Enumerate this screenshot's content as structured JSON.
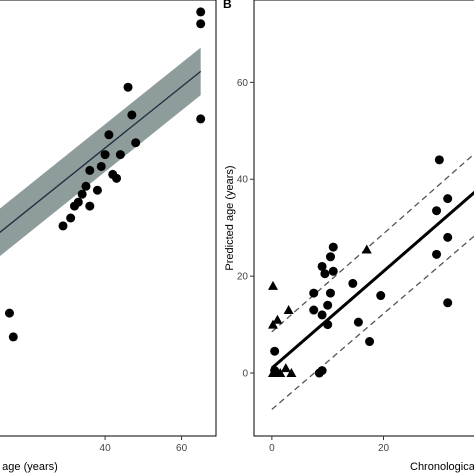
{
  "chart_data": [
    {
      "type": "scatter",
      "panel_label": "",
      "xlabel": "age (years)",
      "ylabel": "",
      "x_ticks": [
        40,
        60
      ],
      "y_ticks": [],
      "xlim": [
        12,
        69
      ],
      "ylim": [
        -10,
        100
      ],
      "grid": false,
      "series": [
        {
          "marker": "circle",
          "points": [
            [
              15,
              21
            ],
            [
              16,
              15
            ],
            [
              29,
              43
            ],
            [
              31,
              45
            ],
            [
              32,
              48
            ],
            [
              33,
              49
            ],
            [
              34,
              51
            ],
            [
              35,
              53
            ],
            [
              36,
              57
            ],
            [
              36,
              48
            ],
            [
              38,
              52
            ],
            [
              39,
              58
            ],
            [
              40,
              61
            ],
            [
              41,
              66
            ],
            [
              42,
              56
            ],
            [
              43,
              55
            ],
            [
              44,
              61
            ],
            [
              46,
              78
            ],
            [
              47,
              71
            ],
            [
              48,
              64
            ],
            [
              65,
              102
            ],
            [
              65,
              97
            ],
            [
              65,
              94
            ],
            [
              65,
              70
            ]
          ]
        }
      ],
      "fit_line": {
        "x": [
          12,
          65
        ],
        "y": [
          41,
          82
        ]
      },
      "ci_band": {
        "x": [
          12,
          65
        ],
        "lower": [
          35,
          76
        ],
        "upper": [
          47,
          88
        ]
      },
      "colors": {
        "band": "#8e9c9c",
        "line": "#1f2f3f",
        "points": "#000000"
      }
    },
    {
      "type": "scatter",
      "panel_label": "B",
      "xlabel": "Chronological",
      "ylabel": "Predicted age (years)",
      "x_ticks": [
        0,
        20
      ],
      "y_ticks": [
        0,
        20,
        40,
        60
      ],
      "xlim": [
        -3.2,
        38
      ],
      "ylim": [
        -13,
        77
      ],
      "grid": false,
      "series": [
        {
          "marker": "circle",
          "points": [
            [
              0.5,
              0.5
            ],
            [
              0.5,
              4.5
            ],
            [
              7.5,
              16.5
            ],
            [
              7.5,
              13
            ],
            [
              8.5,
              0
            ],
            [
              9,
              0.5
            ],
            [
              9,
              22
            ],
            [
              9,
              12
            ],
            [
              9.5,
              20.5
            ],
            [
              10,
              10
            ],
            [
              10,
              14
            ],
            [
              10.5,
              16.5
            ],
            [
              10.5,
              24
            ],
            [
              11,
              26
            ],
            [
              11,
              21
            ],
            [
              14.5,
              18.5
            ],
            [
              15.5,
              10.5
            ],
            [
              17.5,
              6.5
            ],
            [
              19.5,
              16
            ],
            [
              29.5,
              33.5
            ],
            [
              29.5,
              24.5
            ],
            [
              30,
              44
            ],
            [
              31.5,
              36
            ],
            [
              31.5,
              28
            ],
            [
              31.5,
              14.5
            ]
          ]
        },
        {
          "marker": "triangle",
          "points": [
            [
              0.2,
              18
            ],
            [
              0.2,
              10
            ],
            [
              1,
              11
            ],
            [
              0.2,
              0
            ],
            [
              1.5,
              0
            ],
            [
              2.5,
              1
            ],
            [
              3,
              13
            ],
            [
              3.5,
              0
            ],
            [
              17,
              25.5
            ]
          ]
        }
      ],
      "fit_line": {
        "x": [
          0,
          38
        ],
        "y": [
          1,
          39
        ]
      },
      "pred_bounds": {
        "x": [
          0,
          38
        ],
        "lower": [
          -7.5,
          30
        ],
        "upper": [
          8.5,
          47
        ]
      },
      "colors": {
        "line": "#000000",
        "bounds": "#555555",
        "points": "#000000"
      }
    }
  ]
}
